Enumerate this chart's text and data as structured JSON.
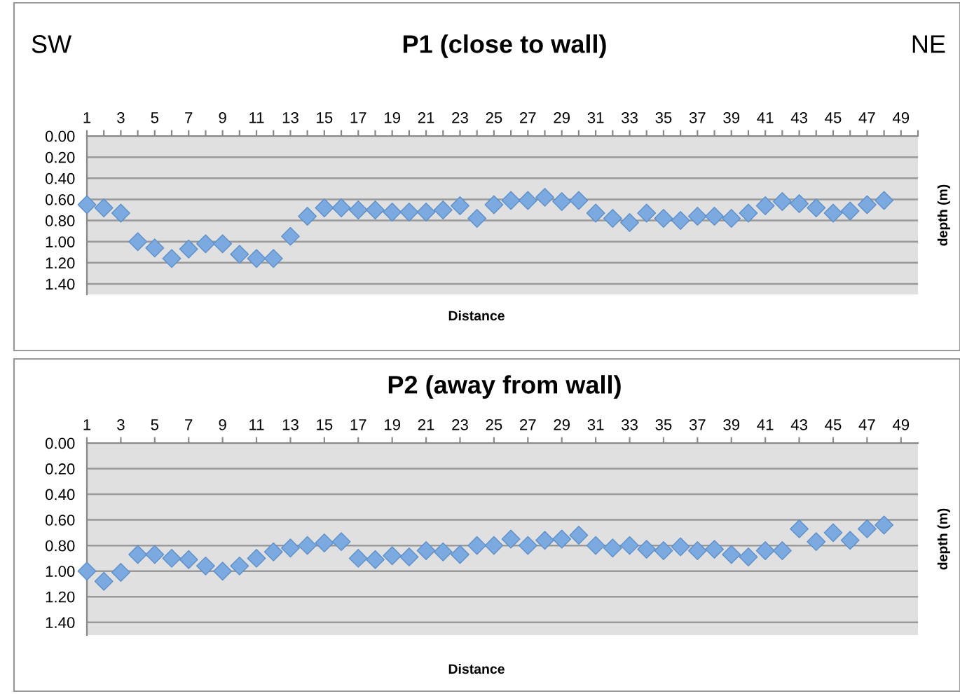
{
  "chart_data": [
    {
      "type": "scatter",
      "title": "P1 (close to wall)",
      "xlabel": "Distance",
      "ylabel": "depth (m)",
      "annotations": [
        "SW",
        "NE"
      ],
      "marker": "diamond",
      "grid": "y",
      "x": [
        1,
        2,
        3,
        4,
        5,
        6,
        7,
        8,
        9,
        10,
        11,
        12,
        13,
        14,
        15,
        16,
        17,
        18,
        19,
        20,
        21,
        22,
        23,
        24,
        25,
        26,
        27,
        28,
        29,
        30,
        31,
        32,
        33,
        34,
        35,
        36,
        37,
        38,
        39,
        40,
        41,
        42,
        43,
        44,
        45,
        46,
        47,
        48
      ],
      "series": [
        {
          "color": "#7aaae0",
          "values": [
            0.65,
            0.68,
            0.73,
            1.0,
            1.06,
            1.16,
            1.07,
            1.02,
            1.02,
            1.12,
            1.16,
            1.16,
            0.95,
            0.76,
            0.68,
            0.68,
            0.7,
            0.7,
            0.72,
            0.72,
            0.72,
            0.7,
            0.66,
            0.78,
            0.65,
            0.61,
            0.61,
            0.58,
            0.62,
            0.61,
            0.73,
            0.78,
            0.82,
            0.73,
            0.78,
            0.8,
            0.76,
            0.76,
            0.78,
            0.73,
            0.66,
            0.62,
            0.64,
            0.68,
            0.73,
            0.71,
            0.65,
            0.61
          ]
        }
      ],
      "xlim": [
        1,
        50
      ],
      "xticks": [
        1,
        {
          "value": 2,
          "label": null
        },
        3,
        {
          "value": 4,
          "label": null
        },
        5,
        {
          "value": 6,
          "label": null
        },
        7,
        {
          "value": 8,
          "label": null
        },
        9,
        {
          "value": 10,
          "label": null
        },
        11,
        {
          "value": 12,
          "label": null
        },
        13,
        {
          "value": 14,
          "label": null
        },
        15,
        {
          "value": 16,
          "label": null
        },
        17,
        {
          "value": 18,
          "label": null
        },
        19,
        {
          "value": 20,
          "label": null
        },
        21,
        {
          "value": 22,
          "label": null
        },
        23,
        {
          "value": 24,
          "label": null
        },
        25,
        {
          "value": 26,
          "label": null
        },
        27,
        {
          "value": 28,
          "label": null
        },
        29,
        {
          "value": 30,
          "label": null
        },
        31,
        {
          "value": 32,
          "label": null
        },
        33,
        {
          "value": 34,
          "label": null
        },
        35,
        {
          "value": 36,
          "label": null
        },
        37,
        {
          "value": 38,
          "label": null
        },
        39,
        {
          "value": 40,
          "label": null
        },
        41,
        {
          "value": 42,
          "label": null
        },
        43,
        {
          "value": 44,
          "label": null
        },
        45,
        {
          "value": 46,
          "label": null
        },
        47,
        {
          "value": 48,
          "label": null
        },
        49,
        {
          "value": 50,
          "label": null
        }
      ],
      "ylim": [
        1.5,
        0
      ],
      "yticks": [
        {
          "value": 0,
          "label": "0.00"
        },
        {
          "value": 0.2,
          "label": "0.20"
        },
        {
          "value": 0.4,
          "label": "0.40"
        },
        {
          "value": 0.6,
          "label": "0.60"
        },
        {
          "value": 0.8,
          "label": "0.80"
        },
        {
          "value": 1.0,
          "label": "1.00"
        },
        {
          "value": 1.2,
          "label": "1.20"
        },
        {
          "value": 1.4,
          "label": "1.40"
        }
      ]
    },
    {
      "type": "scatter",
      "title": "P2 (away from wall)",
      "xlabel": "Distance",
      "ylabel": "depth (m)",
      "marker": "diamond",
      "grid": "y",
      "x": [
        1,
        2,
        3,
        4,
        5,
        6,
        7,
        8,
        9,
        10,
        11,
        12,
        13,
        14,
        15,
        16,
        17,
        18,
        19,
        20,
        21,
        22,
        23,
        24,
        25,
        26,
        27,
        28,
        29,
        30,
        31,
        32,
        33,
        34,
        35,
        36,
        37,
        38,
        39,
        40,
        41,
        42,
        43,
        44,
        45,
        46,
        47,
        48
      ],
      "series": [
        {
          "color": "#7aaae0",
          "values": [
            1.0,
            1.08,
            1.01,
            0.87,
            0.87,
            0.9,
            0.91,
            0.96,
            1.0,
            0.96,
            0.9,
            0.85,
            0.82,
            0.8,
            0.78,
            0.77,
            0.9,
            0.91,
            0.88,
            0.89,
            0.84,
            0.85,
            0.87,
            0.8,
            0.8,
            0.75,
            0.8,
            0.76,
            0.75,
            0.72,
            0.8,
            0.82,
            0.8,
            0.83,
            0.84,
            0.81,
            0.84,
            0.83,
            0.87,
            0.89,
            0.84,
            0.84,
            0.67,
            0.77,
            0.7,
            0.76,
            0.67,
            0.64
          ]
        }
      ],
      "xlim": [
        1,
        50
      ],
      "xticks": [
        1,
        3,
        5,
        7,
        9,
        11,
        13,
        15,
        17,
        19,
        21,
        23,
        25,
        27,
        29,
        31,
        33,
        35,
        37,
        39,
        41,
        43,
        45,
        47,
        49
      ],
      "ylim": [
        1.5,
        0
      ],
      "yticks": [
        {
          "value": 0,
          "label": "0.00"
        },
        {
          "value": 0.2,
          "label": "0.20"
        },
        {
          "value": 0.4,
          "label": "0.40"
        },
        {
          "value": 0.6,
          "label": "0.60"
        },
        {
          "value": 0.8,
          "label": "0.80"
        },
        {
          "value": 1.0,
          "label": "1.00"
        },
        {
          "value": 1.2,
          "label": "1.20"
        },
        {
          "value": 1.4,
          "label": "1.40"
        }
      ]
    }
  ]
}
